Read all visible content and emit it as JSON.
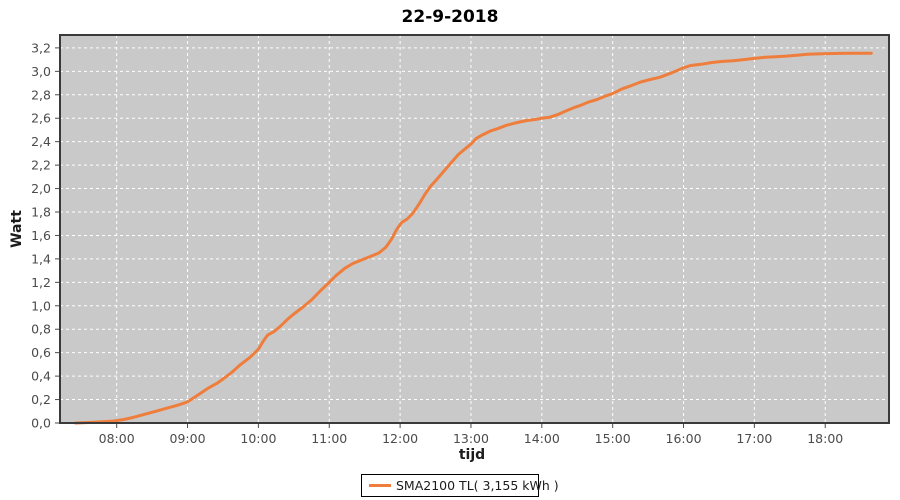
{
  "title": "22-9-2018",
  "axes": {
    "y_label": "Watt",
    "x_label": "tijd"
  },
  "legend": {
    "label": "SMA2100 TL( 3,155 kWh )"
  },
  "colors": {
    "series": "#ef7d3c",
    "plot_background": "#c9c9c9",
    "gridline": "#ffffff",
    "tick_text": "#4b4b4b",
    "plot_border": "#3a3a3a",
    "legend_border": "#000000",
    "legend_background": "#ffffff",
    "page_background": "#ffffff"
  },
  "chart_data": {
    "type": "line",
    "title": "22-9-2018",
    "xlabel": "tijd",
    "ylabel": "Watt",
    "grid": true,
    "legend_position": "bottom-center",
    "xlim": [
      7.2,
      18.9
    ],
    "ylim": [
      0,
      3.31
    ],
    "x_ticks": [
      {
        "v": 8,
        "label": "08:00"
      },
      {
        "v": 9,
        "label": "09:00"
      },
      {
        "v": 10,
        "label": "10:00"
      },
      {
        "v": 11,
        "label": "11:00"
      },
      {
        "v": 12,
        "label": "12:00"
      },
      {
        "v": 13,
        "label": "13:00"
      },
      {
        "v": 14,
        "label": "14:00"
      },
      {
        "v": 15,
        "label": "15:00"
      },
      {
        "v": 16,
        "label": "16:00"
      },
      {
        "v": 17,
        "label": "17:00"
      },
      {
        "v": 18,
        "label": "18:00"
      }
    ],
    "y_ticks": [
      {
        "v": 0.0,
        "label": "0,0"
      },
      {
        "v": 0.2,
        "label": "0,2"
      },
      {
        "v": 0.4,
        "label": "0,4"
      },
      {
        "v": 0.6,
        "label": "0,6"
      },
      {
        "v": 0.8,
        "label": "0,8"
      },
      {
        "v": 1.0,
        "label": "1,0"
      },
      {
        "v": 1.2,
        "label": "1,2"
      },
      {
        "v": 1.4,
        "label": "1,4"
      },
      {
        "v": 1.6,
        "label": "1,6"
      },
      {
        "v": 1.8,
        "label": "1,8"
      },
      {
        "v": 2.0,
        "label": "2,0"
      },
      {
        "v": 2.2,
        "label": "2,2"
      },
      {
        "v": 2.4,
        "label": "2,4"
      },
      {
        "v": 2.6,
        "label": "2,6"
      },
      {
        "v": 2.8,
        "label": "2,8"
      },
      {
        "v": 3.0,
        "label": "3,0"
      },
      {
        "v": 3.2,
        "label": "3,2"
      }
    ],
    "series": [
      {
        "name": "SMA2100 TL",
        "total": "3,155 kWh",
        "legend_label": "SMA2100 TL( 3,155 kWh )",
        "color": "#ef7d3c",
        "points": [
          [
            7.42,
            0
          ],
          [
            7.6,
            0.004
          ],
          [
            7.8,
            0.01
          ],
          [
            7.95,
            0.016
          ],
          [
            8.1,
            0.03
          ],
          [
            8.25,
            0.05
          ],
          [
            8.4,
            0.075
          ],
          [
            8.55,
            0.1
          ],
          [
            8.7,
            0.125
          ],
          [
            8.85,
            0.15
          ],
          [
            9.0,
            0.18
          ],
          [
            9.1,
            0.22
          ],
          [
            9.2,
            0.26
          ],
          [
            9.3,
            0.3
          ],
          [
            9.42,
            0.34
          ],
          [
            9.5,
            0.375
          ],
          [
            9.62,
            0.43
          ],
          [
            9.75,
            0.5
          ],
          [
            9.88,
            0.56
          ],
          [
            10.0,
            0.63
          ],
          [
            10.07,
            0.7
          ],
          [
            10.13,
            0.75
          ],
          [
            10.22,
            0.78
          ],
          [
            10.3,
            0.82
          ],
          [
            10.42,
            0.89
          ],
          [
            10.5,
            0.93
          ],
          [
            10.63,
            0.99
          ],
          [
            10.75,
            1.05
          ],
          [
            10.88,
            1.13
          ],
          [
            11.0,
            1.2
          ],
          [
            11.1,
            1.26
          ],
          [
            11.22,
            1.32
          ],
          [
            11.33,
            1.36
          ],
          [
            11.45,
            1.39
          ],
          [
            11.58,
            1.42
          ],
          [
            11.7,
            1.45
          ],
          [
            11.8,
            1.5
          ],
          [
            11.88,
            1.57
          ],
          [
            11.95,
            1.65
          ],
          [
            12.02,
            1.71
          ],
          [
            12.1,
            1.74
          ],
          [
            12.18,
            1.79
          ],
          [
            12.27,
            1.87
          ],
          [
            12.35,
            1.95
          ],
          [
            12.43,
            2.02
          ],
          [
            12.52,
            2.08
          ],
          [
            12.62,
            2.15
          ],
          [
            12.72,
            2.22
          ],
          [
            12.82,
            2.29
          ],
          [
            12.92,
            2.34
          ],
          [
            13.0,
            2.38
          ],
          [
            13.08,
            2.43
          ],
          [
            13.17,
            2.46
          ],
          [
            13.27,
            2.49
          ],
          [
            13.37,
            2.51
          ],
          [
            13.5,
            2.54
          ],
          [
            13.63,
            2.56
          ],
          [
            13.78,
            2.58
          ],
          [
            13.92,
            2.59
          ],
          [
            14.0,
            2.6
          ],
          [
            14.12,
            2.61
          ],
          [
            14.22,
            2.63
          ],
          [
            14.33,
            2.66
          ],
          [
            14.45,
            2.69
          ],
          [
            14.55,
            2.71
          ],
          [
            14.67,
            2.74
          ],
          [
            14.78,
            2.76
          ],
          [
            14.9,
            2.79
          ],
          [
            15.0,
            2.81
          ],
          [
            15.13,
            2.85
          ],
          [
            15.27,
            2.88
          ],
          [
            15.4,
            2.91
          ],
          [
            15.53,
            2.93
          ],
          [
            15.67,
            2.95
          ],
          [
            15.8,
            2.98
          ],
          [
            15.92,
            3.01
          ],
          [
            16.0,
            3.03
          ],
          [
            16.1,
            3.05
          ],
          [
            16.25,
            3.06
          ],
          [
            16.4,
            3.075
          ],
          [
            16.55,
            3.085
          ],
          [
            16.7,
            3.09
          ],
          [
            16.85,
            3.1
          ],
          [
            17.0,
            3.11
          ],
          [
            17.15,
            3.12
          ],
          [
            17.3,
            3.125
          ],
          [
            17.45,
            3.13
          ],
          [
            17.6,
            3.138
          ],
          [
            17.75,
            3.145
          ],
          [
            17.9,
            3.149
          ],
          [
            18.05,
            3.151
          ],
          [
            18.2,
            3.153
          ],
          [
            18.35,
            3.154
          ],
          [
            18.5,
            3.155
          ],
          [
            18.65,
            3.155
          ]
        ]
      }
    ]
  }
}
